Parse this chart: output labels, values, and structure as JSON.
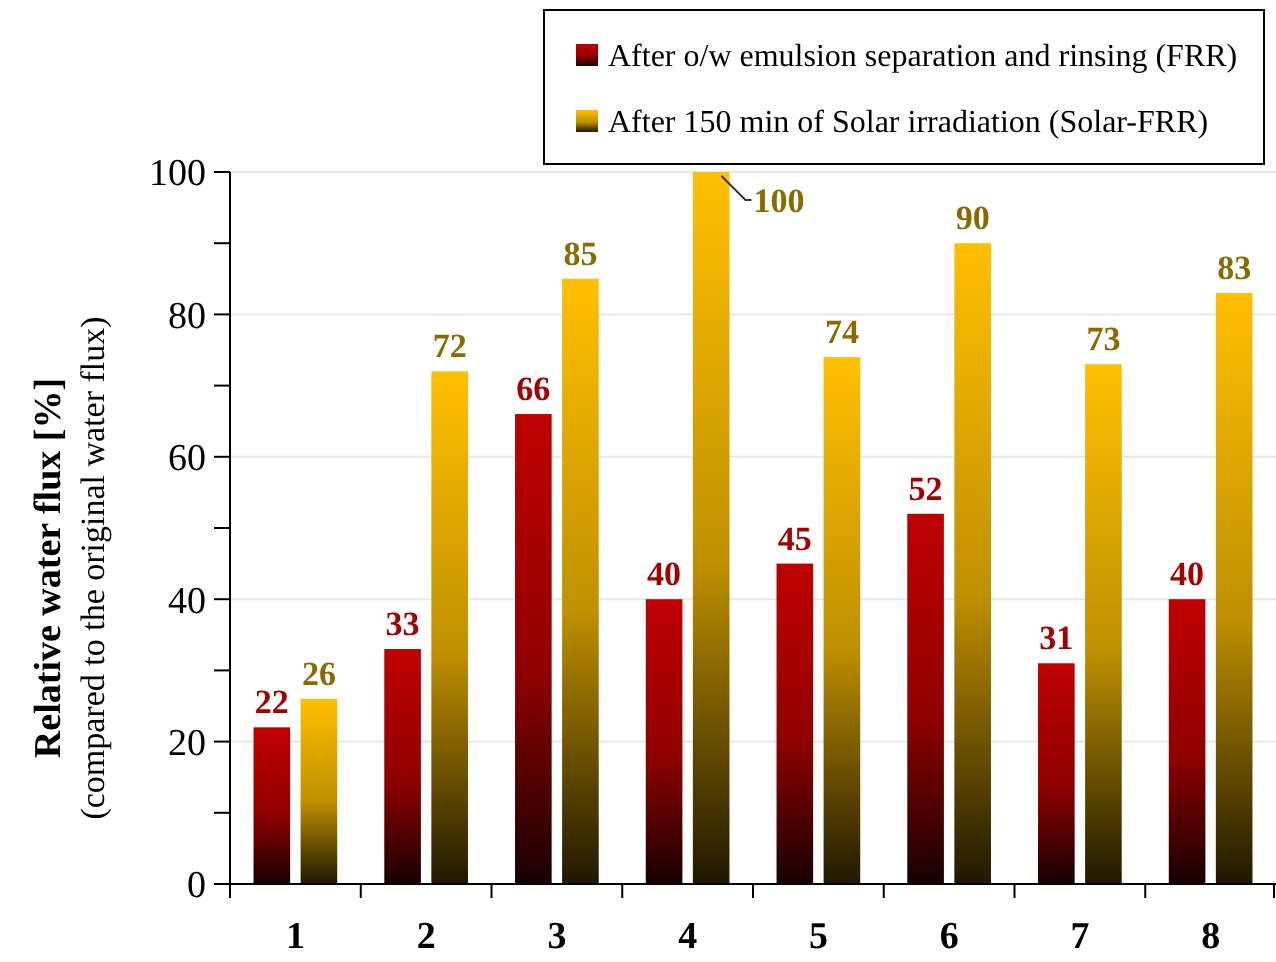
{
  "chart_data": {
    "type": "bar",
    "categories": [
      "1",
      "2",
      "3",
      "4",
      "5",
      "6",
      "7",
      "8"
    ],
    "series": [
      {
        "name": "After o/w emulsion separation and rinsing (FRR)",
        "color": "#c00000",
        "values": [
          22,
          33,
          66,
          40,
          45,
          52,
          31,
          40
        ]
      },
      {
        "name": "After 150 min of Solar irradiation (Solar-FRR)",
        "color": "#ffc000",
        "values": [
          26,
          72,
          85,
          100,
          74,
          90,
          73,
          83
        ]
      }
    ],
    "ylabel": "Relative water flux [%]\n(compared to the original water flux)",
    "ylim": [
      0,
      100
    ],
    "yticks": [
      0,
      {
        "value": 10,
        "label": null
      },
      20,
      {
        "value": 30,
        "label": null
      },
      40,
      {
        "value": 50,
        "label": null
      },
      60,
      {
        "value": 70,
        "label": null
      },
      80,
      {
        "value": 90,
        "label": null
      },
      100
    ],
    "grid": "y",
    "legend": "top",
    "data_labels": true
  }
}
